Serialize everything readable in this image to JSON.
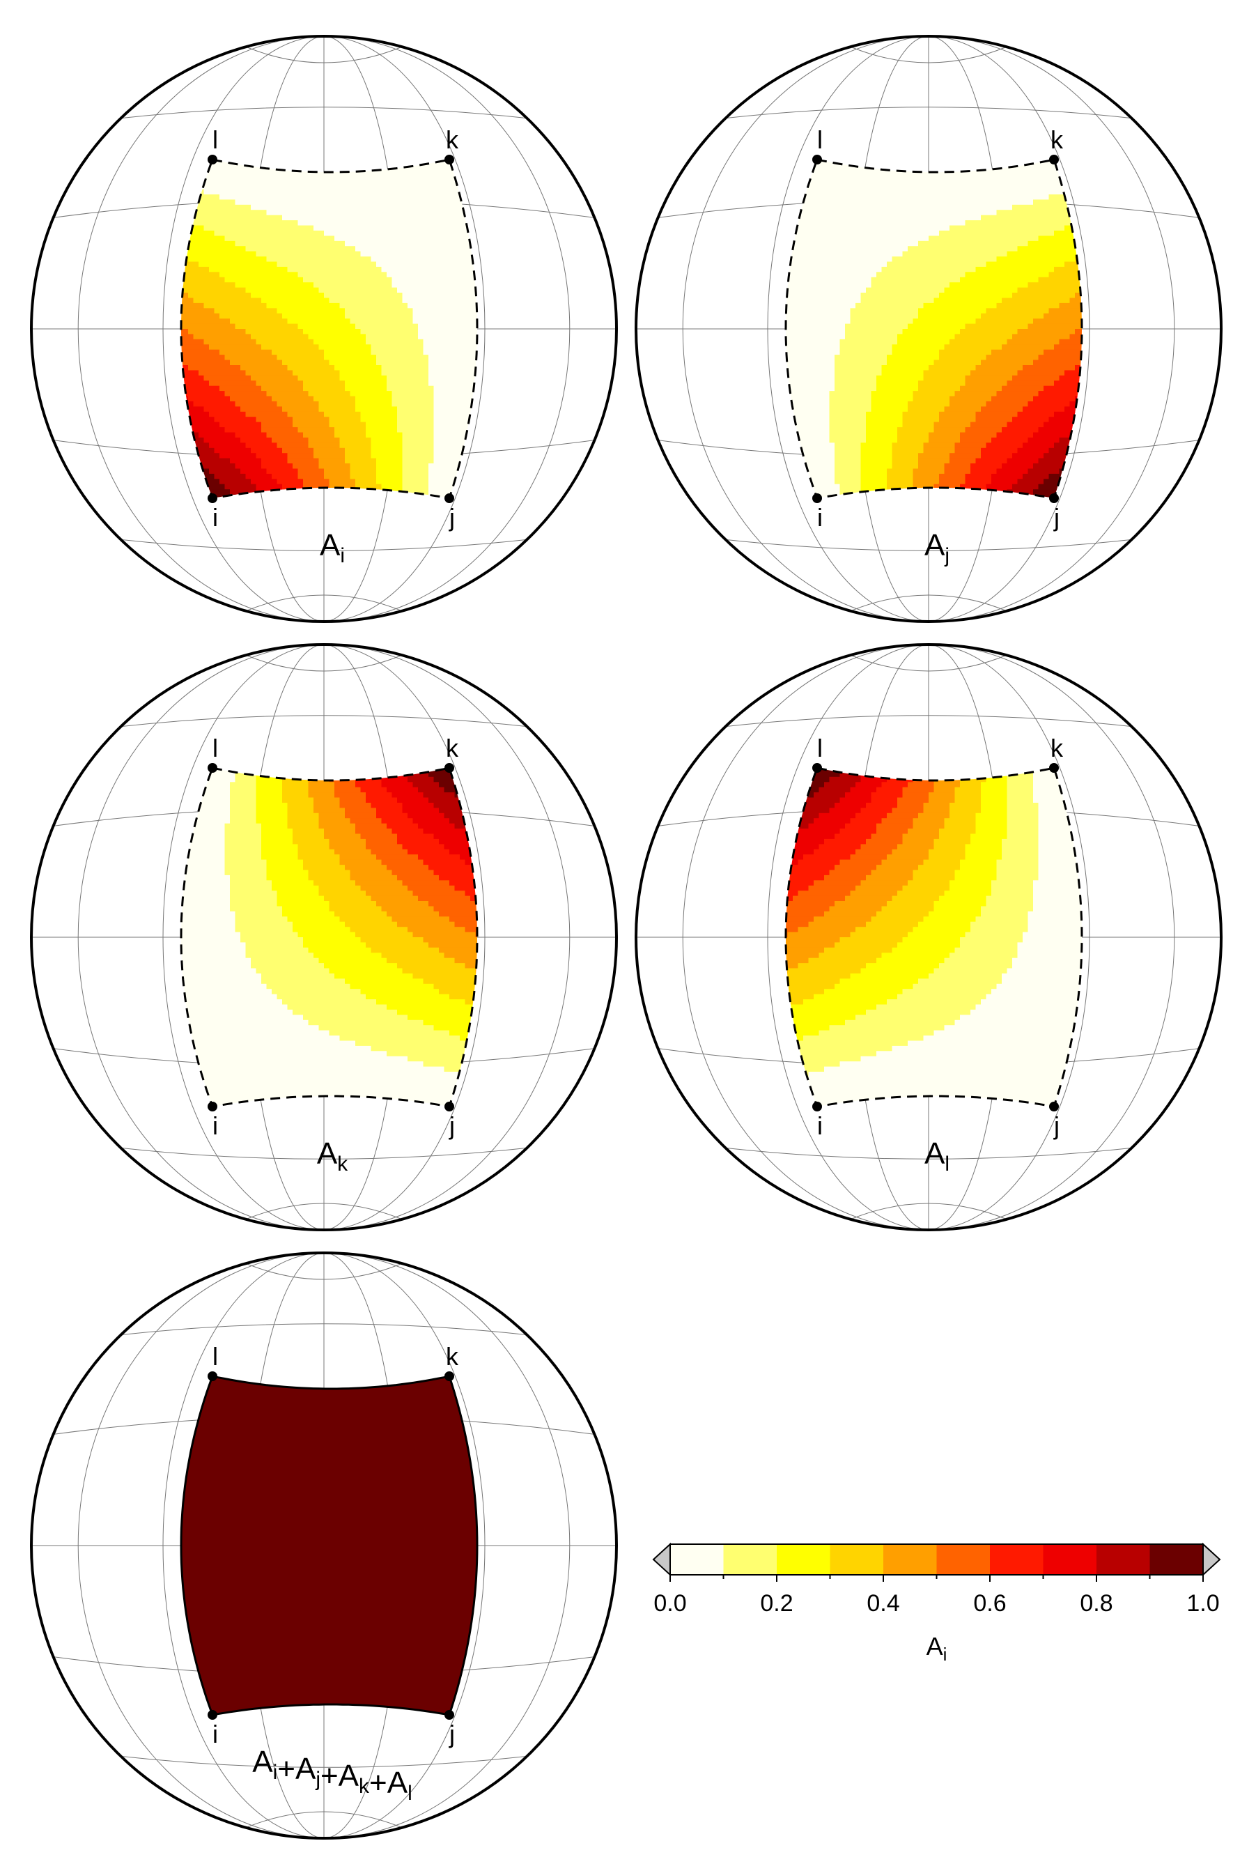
{
  "panels": [
    {
      "id": "Ai",
      "corner": "i",
      "label": {
        "base": "A",
        "sub": "i"
      }
    },
    {
      "id": "Aj",
      "corner": "j",
      "label": {
        "base": "A",
        "sub": "j"
      }
    },
    {
      "id": "Ak",
      "corner": "k",
      "label": {
        "base": "A",
        "sub": "k"
      }
    },
    {
      "id": "Al",
      "corner": "l",
      "label": {
        "base": "A",
        "sub": "l"
      }
    },
    {
      "id": "sum",
      "corner": "all",
      "label": {
        "parts": [
          {
            "base": "A",
            "sub": "i"
          },
          {
            "base": "+A",
            "sub": "j"
          },
          {
            "base": "+A",
            "sub": "k"
          },
          {
            "base": "+A",
            "sub": "l"
          }
        ]
      }
    }
  ],
  "corner_labels": {
    "i": "i",
    "j": "j",
    "k": "k",
    "l": "l"
  },
  "colorbar": {
    "levels": [
      0.0,
      0.1,
      0.2,
      0.3,
      0.4,
      0.5,
      0.6,
      0.7,
      0.8,
      0.9,
      1.0
    ],
    "colors": [
      "#fffff2",
      "#ffff70",
      "#ffff00",
      "#ffd400",
      "#ff9f00",
      "#ff6300",
      "#ff1a00",
      "#ee0000",
      "#b80000",
      "#6b0000"
    ],
    "extend_low_color": "#c8c8c8",
    "extend_high_color": "#c8c8c8",
    "tick_labels": [
      "0.0",
      "0.2",
      "0.4",
      "0.6",
      "0.8",
      "1.0"
    ],
    "title": {
      "base": "A",
      "sub": "i"
    }
  }
}
